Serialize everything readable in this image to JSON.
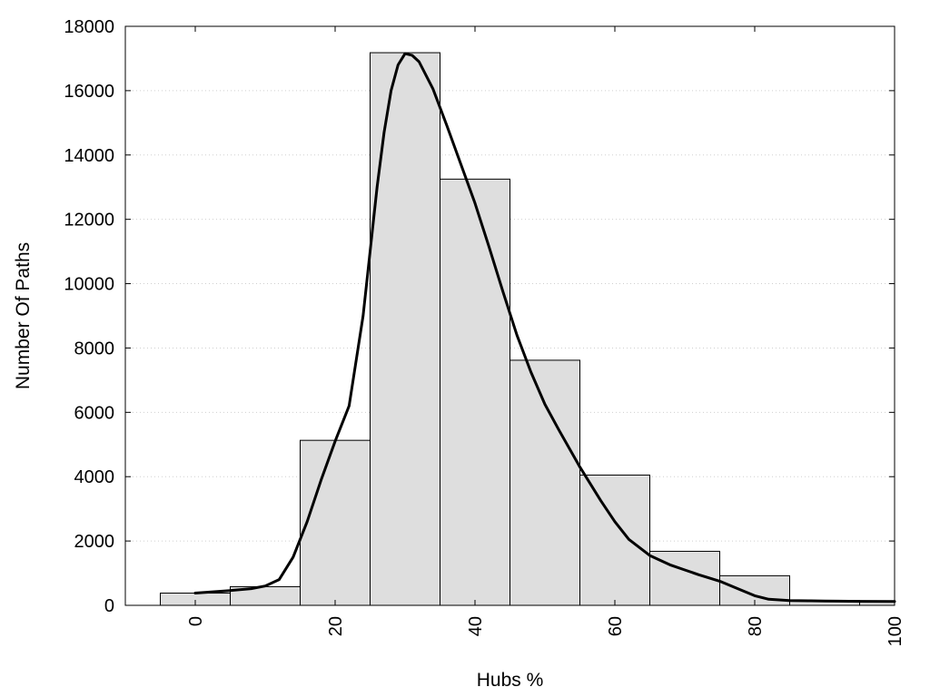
{
  "chart_data": {
    "type": "bar",
    "title": "",
    "xlabel": "Hubs %",
    "ylabel": "Number Of Paths",
    "xlim": [
      -10,
      100
    ],
    "ylim": [
      0,
      18000
    ],
    "x_ticks": [
      "0",
      "20",
      "40",
      "60",
      "80",
      "100"
    ],
    "y_ticks": [
      "0",
      "2000",
      "4000",
      "6000",
      "8000",
      "10000",
      "12000",
      "14000",
      "16000",
      "18000"
    ],
    "grid": "horizontal dotted",
    "bar_width": 10,
    "bar_color": "#dedede",
    "categories": [
      0,
      10,
      20,
      30,
      40,
      50,
      60,
      70,
      80,
      90,
      100
    ],
    "values": [
      380,
      580,
      5130,
      17180,
      13250,
      7620,
      4050,
      1680,
      920,
      150,
      120
    ],
    "density_curve": {
      "x": [
        0,
        5,
        8,
        10,
        12,
        14,
        16,
        18,
        20,
        22,
        24,
        25,
        26,
        27,
        28,
        29,
        30,
        31,
        32,
        34,
        36,
        38,
        40,
        42,
        44,
        46,
        48,
        50,
        52,
        55,
        58,
        60,
        62,
        65,
        68,
        70,
        72,
        75,
        78,
        80,
        82,
        85,
        88,
        90,
        92,
        95,
        100
      ],
      "y": [
        380,
        460,
        520,
        600,
        800,
        1500,
        2600,
        3900,
        5100,
        6200,
        9000,
        11000,
        13000,
        14700,
        16000,
        16800,
        17150,
        17100,
        16900,
        16050,
        14900,
        13700,
        12500,
        11150,
        9750,
        8400,
        7250,
        6250,
        5450,
        4300,
        3250,
        2600,
        2050,
        1550,
        1250,
        1100,
        950,
        750,
        480,
        300,
        190,
        150,
        140,
        135,
        130,
        125,
        120
      ]
    }
  }
}
